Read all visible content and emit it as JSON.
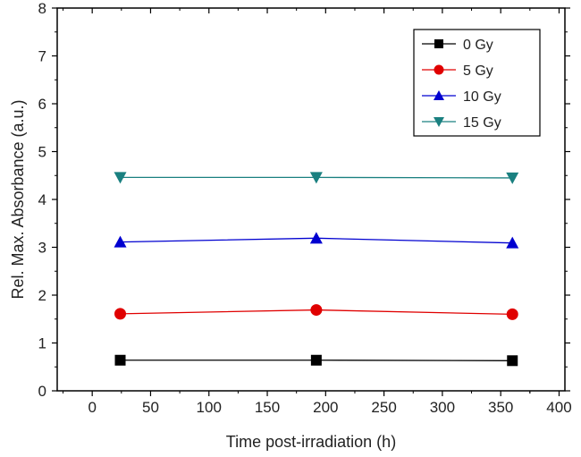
{
  "chart_data": {
    "type": "line",
    "title": "",
    "xlabel": "Time post-irradiation (h)",
    "ylabel": "Rel. Max. Absorbance (a.u.)",
    "xlim": [
      -30,
      405
    ],
    "ylim": [
      0,
      8
    ],
    "xticks": [
      "0",
      "50",
      "100",
      "150",
      "200",
      "250",
      "300",
      "350",
      "400"
    ],
    "yticks": [
      "0",
      "1",
      "2",
      "3",
      "4",
      "5",
      "6",
      "7",
      "8"
    ],
    "grid": false,
    "legend_position": "top-right",
    "x": [
      24,
      192,
      360
    ],
    "series": [
      {
        "name": "0 Gy",
        "values": [
          0.64,
          0.64,
          0.63
        ],
        "color": "#000000",
        "marker": "square"
      },
      {
        "name": "5 Gy",
        "values": [
          1.61,
          1.69,
          1.6
        ],
        "color": "#e00000",
        "marker": "circle"
      },
      {
        "name": "10 Gy",
        "values": [
          3.11,
          3.19,
          3.09
        ],
        "color": "#0000d0",
        "marker": "triangle-up"
      },
      {
        "name": "15 Gy",
        "values": [
          4.46,
          4.46,
          4.45
        ],
        "color": "#1a8080",
        "marker": "triangle-down"
      }
    ]
  }
}
